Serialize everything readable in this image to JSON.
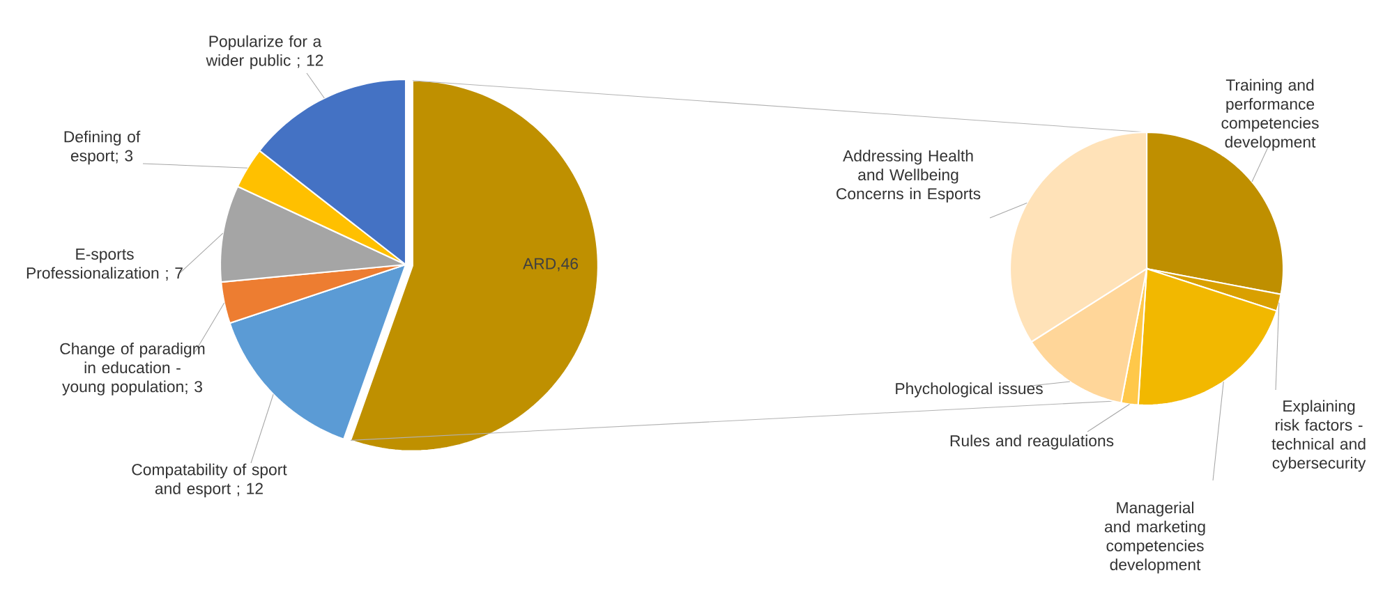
{
  "chart_data": [
    {
      "type": "pie",
      "categories": [
        "ARD,46",
        "Compatability of sport and esport ; 12",
        "Change of paradigm in education - young population; 3",
        "E-sports Professionalization ; 7",
        "Defining of esport; 3",
        "Popularize for a wider public ; 12"
      ],
      "values": [
        46,
        12,
        3,
        7,
        3,
        12
      ],
      "colors": [
        "#bf9000",
        "#5b9bd5",
        "#ed7d31",
        "#a5a5a5",
        "#ffc000",
        "#4472c4"
      ]
    },
    {
      "type": "pie",
      "categories": [
        "Training and performance competencies development",
        "Explaining risk factors - technical and cybersecurity",
        "Managerial and marketing competencies development",
        "Rules and reagulations",
        "Phychological issues",
        "Addressing Health and Wellbeing Concerns in Esports"
      ],
      "values": [
        28,
        2,
        21,
        2,
        13,
        34
      ],
      "colors": [
        "#bf8f00",
        "#d9a000",
        "#f2b800",
        "#ffc84a",
        "#ffd699",
        "#ffe2b8"
      ]
    }
  ]
}
